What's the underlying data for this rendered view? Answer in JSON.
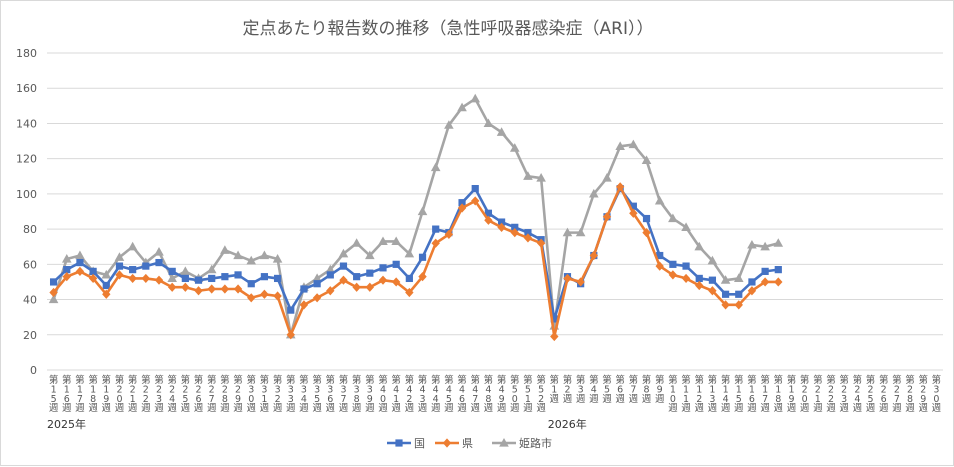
{
  "chart_data": {
    "type": "line",
    "title": "定点あたり報告数の推移（急性呼吸器感染症（ARI））",
    "xlabel": "",
    "ylabel": "",
    "ylim": [
      0,
      180
    ],
    "ytick_step": 20,
    "grid": "horizontal",
    "legend_position": "bottom",
    "categories": [
      "第15週",
      "第16週",
      "第17週",
      "第18週",
      "第19週",
      "第20週",
      "第21週",
      "第22週",
      "第23週",
      "第24週",
      "第25週",
      "第26週",
      "第27週",
      "第28週",
      "第29週",
      "第30週",
      "第31週",
      "第32週",
      "第33週",
      "第34週",
      "第35週",
      "第36週",
      "第37週",
      "第38週",
      "第39週",
      "第40週",
      "第41週",
      "第42週",
      "第43週",
      "第44週",
      "第45週",
      "第46週",
      "第47週",
      "第48週",
      "第49週",
      "第50週",
      "第51週",
      "第52週",
      "第1週",
      "第2週",
      "第3週",
      "第4週",
      "第5週",
      "第6週",
      "第7週",
      "第8週",
      "第9週",
      "第10週",
      "第11週",
      "第12週",
      "第13週",
      "第14週",
      "第15週",
      "第16週",
      "第17週",
      "第18週",
      "第19週",
      "第20週",
      "第21週",
      "第22週",
      "第23週",
      "第24週",
      "第25週",
      "第26週",
      "第27週",
      "第28週",
      "第29週",
      "第30週"
    ],
    "year_labels": [
      {
        "label": "2025年",
        "at_index": 0
      },
      {
        "label": "2026年",
        "at_index": 38
      }
    ],
    "series": [
      {
        "name": "国",
        "color": "#4472c4",
        "marker": "square",
        "values": [
          50,
          57,
          61,
          56,
          48,
          59,
          57,
          59,
          61,
          56,
          52,
          51,
          52,
          53,
          54,
          49,
          53,
          52,
          34,
          46,
          49,
          54,
          59,
          53,
          55,
          58,
          60,
          52,
          64,
          80,
          78,
          95,
          103,
          89,
          84,
          81,
          78,
          74,
          29,
          53,
          49,
          65,
          87,
          103,
          93,
          86,
          65,
          60,
          59,
          52,
          51,
          43,
          43,
          50,
          56,
          57,
          null,
          null,
          null,
          null,
          null,
          null,
          null,
          null,
          null,
          null,
          null,
          null
        ]
      },
      {
        "name": "県",
        "color": "#ed7d31",
        "marker": "diamond",
        "values": [
          44,
          53,
          56,
          52,
          43,
          54,
          52,
          52,
          51,
          47,
          47,
          45,
          46,
          46,
          46,
          41,
          43,
          42,
          20,
          37,
          41,
          45,
          51,
          47,
          47,
          51,
          50,
          44,
          53,
          72,
          77,
          92,
          96,
          85,
          81,
          78,
          75,
          72,
          19,
          52,
          50,
          65,
          87,
          104,
          89,
          78,
          59,
          54,
          52,
          48,
          45,
          37,
          37,
          45,
          50,
          50,
          null,
          null,
          null,
          null,
          null,
          null,
          null,
          null,
          null,
          null,
          null,
          null
        ]
      },
      {
        "name": "姫路市",
        "color": "#a5a5a5",
        "marker": "triangle",
        "values": [
          40,
          63,
          65,
          56,
          54,
          64,
          70,
          61,
          67,
          52,
          56,
          52,
          57,
          68,
          65,
          62,
          65,
          63,
          20,
          47,
          52,
          57,
          66,
          72,
          65,
          73,
          73,
          66,
          90,
          115,
          139,
          149,
          154,
          140,
          135,
          126,
          110,
          109,
          25,
          78,
          78,
          100,
          109,
          127,
          128,
          119,
          96,
          86,
          81,
          70,
          62,
          51,
          52,
          71,
          70,
          72,
          null,
          null,
          null,
          null,
          null,
          null,
          null,
          null,
          null,
          null,
          null,
          null
        ]
      }
    ]
  }
}
